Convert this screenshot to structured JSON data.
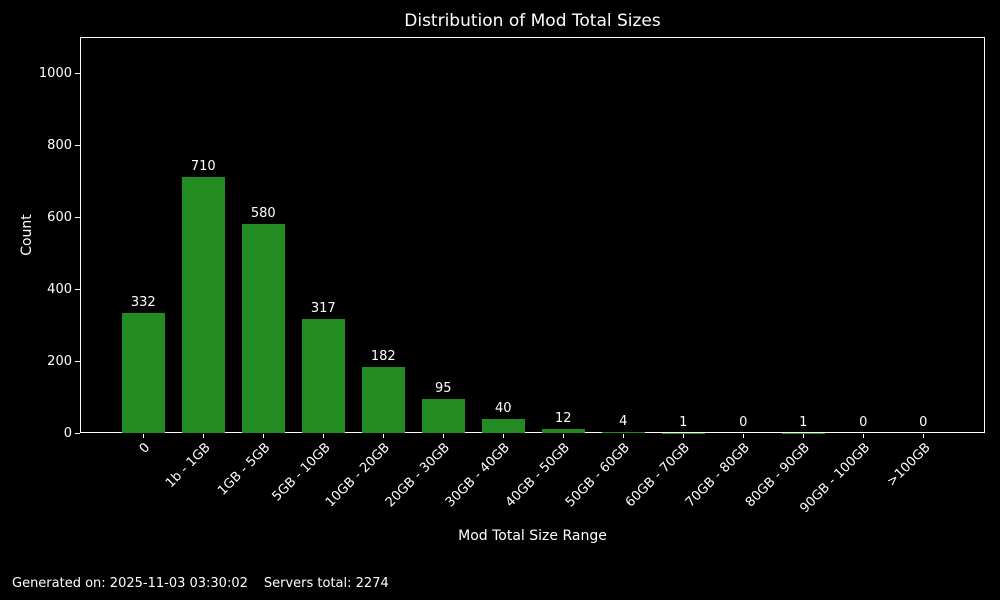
{
  "chart_data": {
    "type": "bar",
    "title": "Distribution of Mod Total Sizes",
    "xlabel": "Mod Total Size Range",
    "ylabel": "Count",
    "categories": [
      "0",
      "1b - 1GB",
      "1GB - 5GB",
      "5GB - 10GB",
      "10GB - 20GB",
      "20GB - 30GB",
      "30GB - 40GB",
      "40GB - 50GB",
      "50GB - 60GB",
      "60GB - 70GB",
      "70GB - 80GB",
      "80GB - 90GB",
      "90GB - 100GB",
      ">100GB"
    ],
    "values": [
      332,
      710,
      580,
      317,
      182,
      95,
      40,
      12,
      4,
      1,
      0,
      1,
      0,
      0
    ],
    "ylim": [
      0,
      1100
    ],
    "yticks": [
      0,
      200,
      400,
      600,
      800,
      1000
    ],
    "x_tick_rotation": 45,
    "grid": false,
    "legend": null,
    "bar_labels_shown": true,
    "colors": {
      "bar": "#228B22",
      "background": "#000000",
      "text": "#ffffff",
      "spine": "#ffffff"
    }
  },
  "footer": {
    "generated": "Generated on: 2025-11-03 03:30:02",
    "servers_total": "Servers total: 2274"
  }
}
